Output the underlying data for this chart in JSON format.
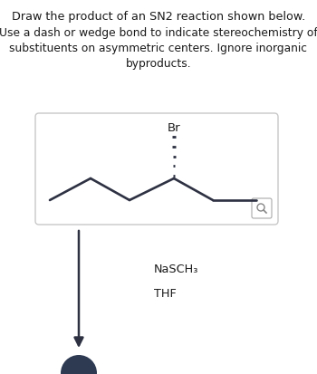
{
  "title_line1": "Draw the product of an SN2 reaction shown below.",
  "subtitle": "Use a dash or wedge bond to indicate stereochemistry of\nsubstituents on asymmetric centers. Ignore inorganic\nbyproducts.",
  "reagent1": "NaSCH₃",
  "reagent2": "THF",
  "bond_color": "#2d3142",
  "text_color": "#1a1a1a",
  "background": "#ffffff",
  "box_edge_color": "#c8c8c8",
  "arrow_color": "#2d3142",
  "br_label": "Br",
  "mag_edge": "#aaaaaa",
  "bottom_circle_color": "#2d3a52"
}
